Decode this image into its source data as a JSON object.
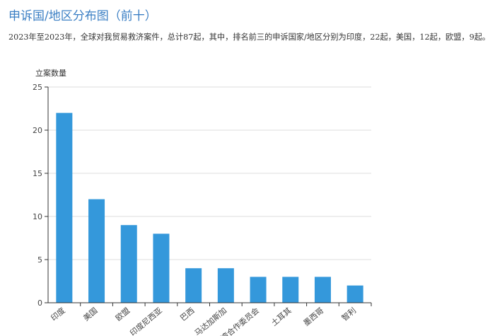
{
  "page": {
    "title": "申诉国/地区分布图（前十）",
    "summary": "2023年至2023年，全球对我贸易救济案件，总计87起，其中，排名前三的申诉国家/地区分别为印度，22起，美国，12起，欧盟，9起。"
  },
  "colors": {
    "bar": "#3498db",
    "grid": "#dddddd",
    "axis": "#333333",
    "title": "#3b7fc4"
  },
  "chart_data": {
    "type": "bar",
    "title": "",
    "xlabel": "",
    "ylabel": "立案数量",
    "categories": [
      "印度",
      "美国",
      "欧盟",
      "印度尼西亚",
      "巴西",
      "马达加斯加",
      "海湾合作委员会",
      "土耳其",
      "墨西哥",
      "智利"
    ],
    "values": [
      22,
      12,
      9,
      8,
      4,
      4,
      3,
      3,
      3,
      2
    ],
    "ylim": [
      0,
      25
    ],
    "yticks": [
      0,
      5,
      10,
      15,
      20,
      25
    ],
    "grid": true,
    "legend": "none"
  }
}
